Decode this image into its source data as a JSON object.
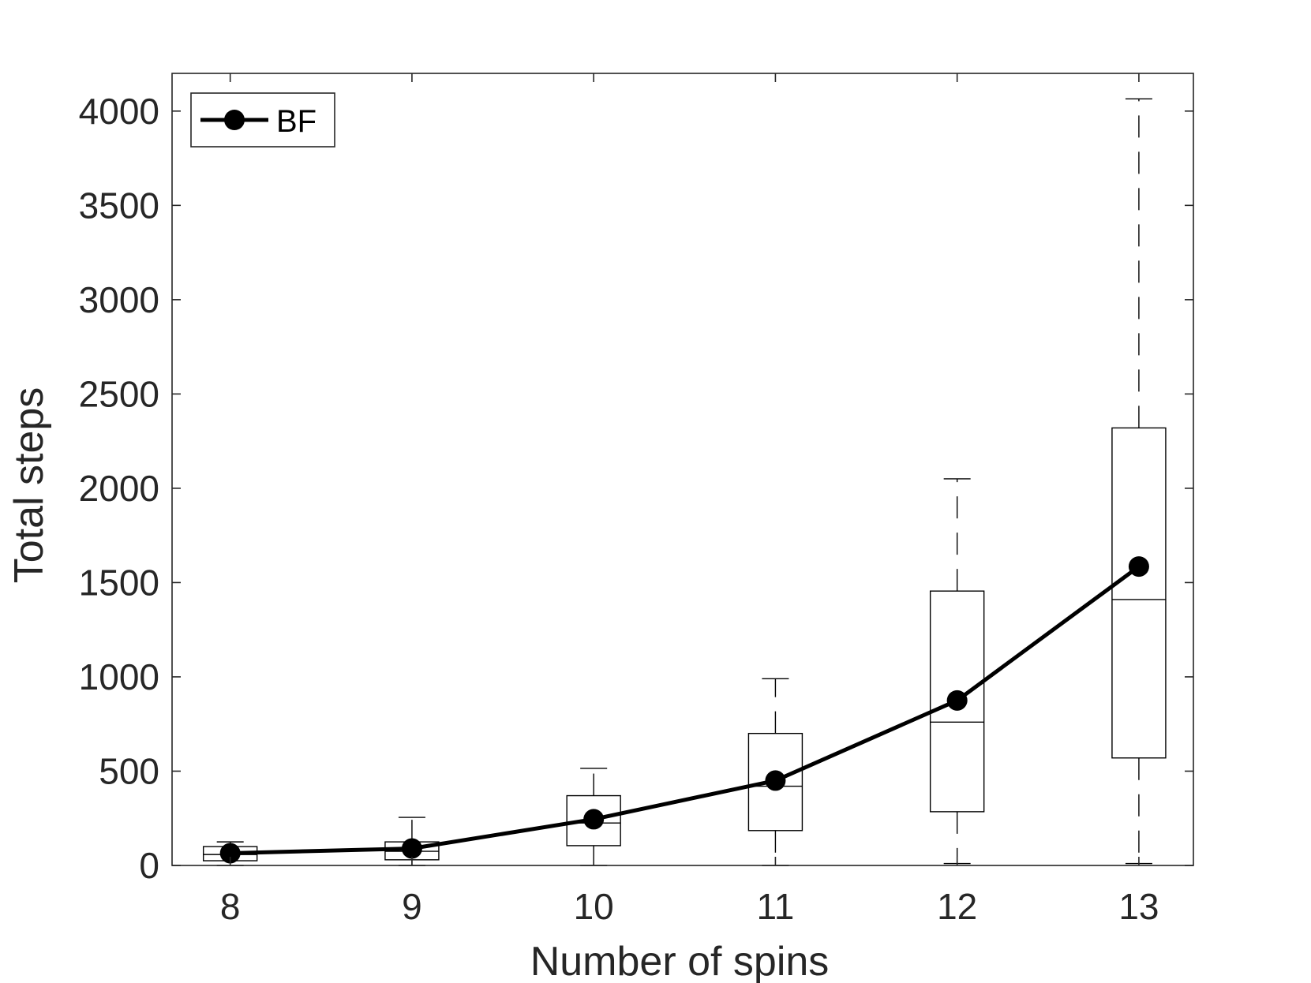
{
  "chart_data": {
    "type": "box",
    "title": "",
    "xlabel": "Number of spins",
    "ylabel": "Total steps",
    "categories": [
      "8",
      "9",
      "10",
      "11",
      "12",
      "13"
    ],
    "x": [
      8,
      9,
      10,
      11,
      12,
      13
    ],
    "xlim": [
      7.68,
      13.3
    ],
    "ylim": [
      0,
      4200
    ],
    "yticks": [
      0,
      500,
      1000,
      1500,
      2000,
      2500,
      3000,
      3500,
      4000
    ],
    "yticklabels": [
      "0",
      "500",
      "1000",
      "1500",
      "2000",
      "2500",
      "3000",
      "3500",
      "4000"
    ],
    "grid": false,
    "legend": {
      "position": "top-left",
      "entries": [
        "BF"
      ]
    },
    "series": [
      {
        "name": "BF",
        "values": [
          65,
          90,
          245,
          450,
          875,
          1585
        ],
        "color": "#000000",
        "marker": "filled-circle"
      }
    ],
    "boxes": [
      {
        "x": 8,
        "whisker_low": 0,
        "q1": 25,
        "median": 58,
        "q3": 100,
        "whisker_high": 125
      },
      {
        "x": 9,
        "whisker_low": 0,
        "q1": 30,
        "median": 75,
        "q3": 125,
        "whisker_high": 255
      },
      {
        "x": 10,
        "whisker_low": 0,
        "q1": 105,
        "median": 225,
        "q3": 370,
        "whisker_high": 515
      },
      {
        "x": 11,
        "whisker_low": 0,
        "q1": 185,
        "median": 420,
        "q3": 700,
        "whisker_high": 990
      },
      {
        "x": 12,
        "whisker_low": 10,
        "q1": 285,
        "median": 760,
        "q3": 1455,
        "whisker_high": 2050
      },
      {
        "x": 13,
        "whisker_low": 10,
        "q1": 570,
        "median": 1410,
        "q3": 2320,
        "whisker_high": 4065
      }
    ]
  }
}
